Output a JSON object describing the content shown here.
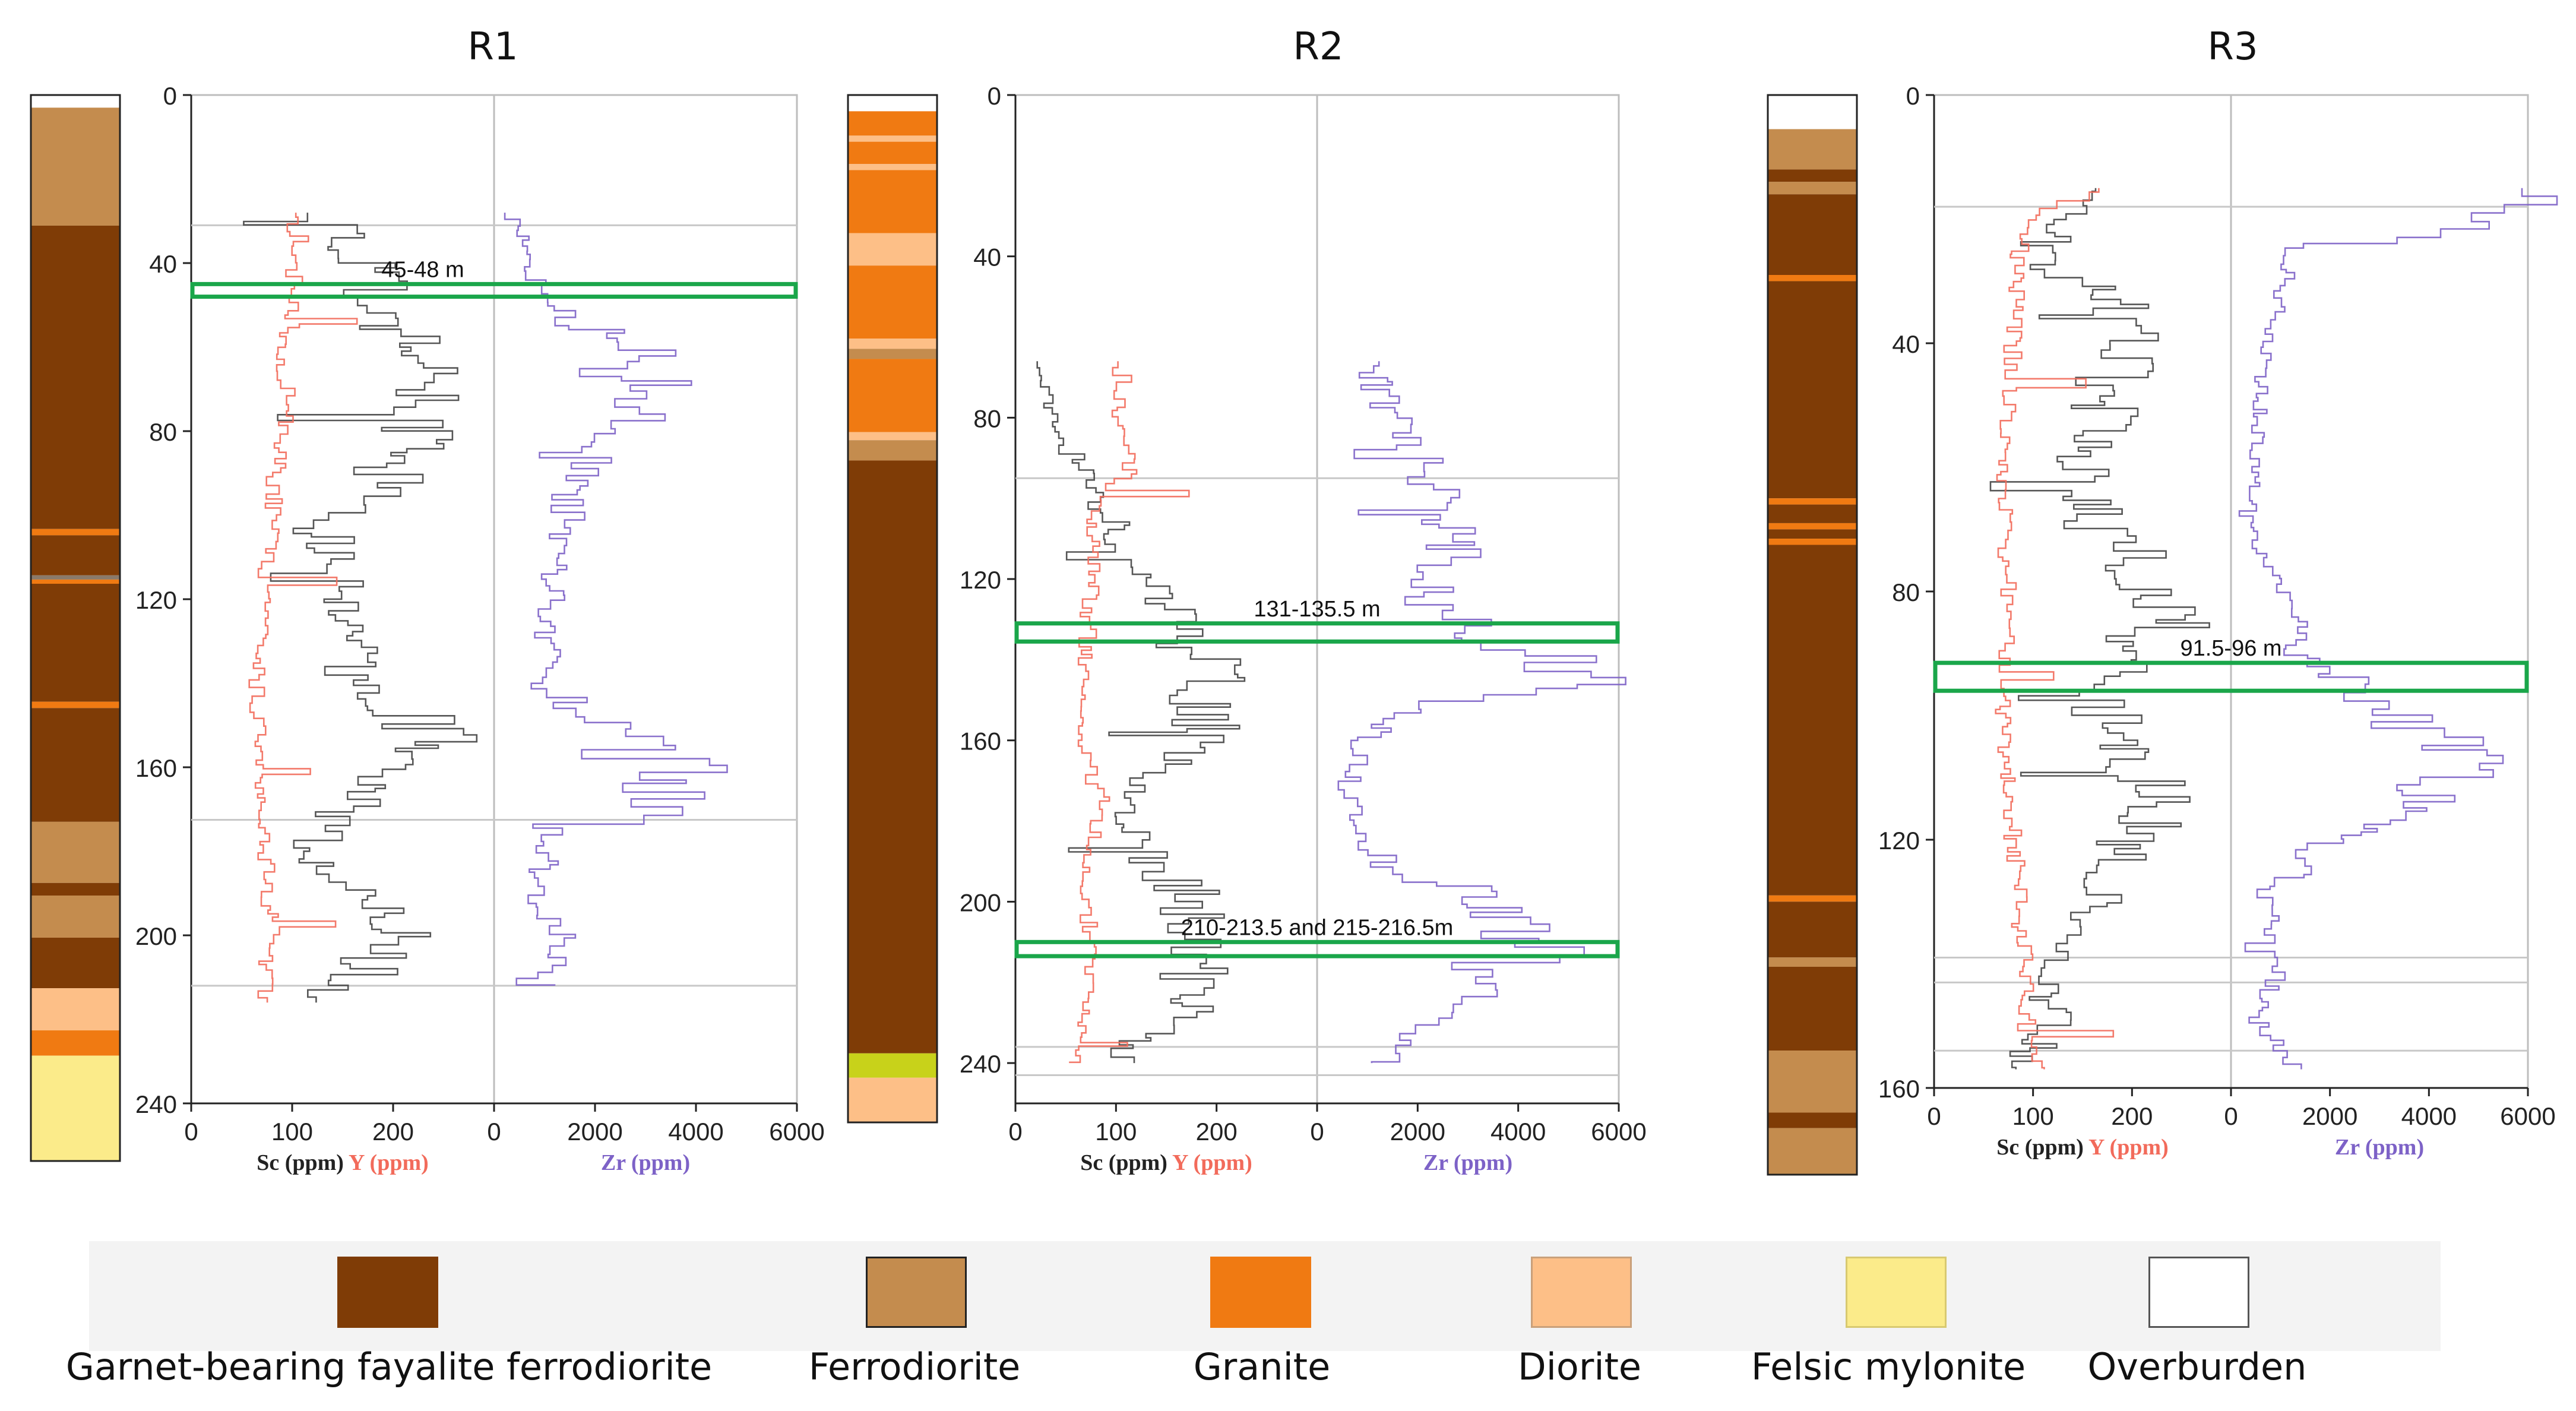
{
  "figure": {
    "legend": [
      {
        "key": "gbff",
        "label": "Garnet-bearing fayalite ferrodiorite",
        "color": "#7f3c06",
        "border": "#7f3c06"
      },
      {
        "key": "fd",
        "label": "Ferrodiorite",
        "color": "#c48c4e",
        "border": "#222222"
      },
      {
        "key": "gr",
        "label": "Granite",
        "color": "#f07a12",
        "border": "#f07a12"
      },
      {
        "key": "di",
        "label": "Diorite",
        "color": "#fdbf87",
        "border": "#c9a07a"
      },
      {
        "key": "fm",
        "label": "Felsic mylonite",
        "color": "#fbeb8a",
        "border": "#d8c970"
      },
      {
        "key": "ob",
        "label": "Overburden",
        "color": "#ffffff",
        "border": "#555555"
      }
    ],
    "extra_colors": {
      "lime": "#c8d21a",
      "grey": "#8a7a6a"
    }
  },
  "chart_data": [
    {
      "type": "line",
      "title": "R1",
      "ylabel": "",
      "ylim": [
        0,
        240
      ],
      "yticks": [
        "0",
        "40",
        "80",
        "120",
        "160",
        "200",
        "240"
      ],
      "xlabel_left": [
        {
          "text": "Sc (ppm)",
          "color": "#222222"
        },
        {
          "text": "Y (ppm)",
          "color": "#f26b5b"
        }
      ],
      "xlabel_right": [
        {
          "text": "Zr (ppm)",
          "color": "#7d62c7"
        }
      ],
      "left_xlim": [
        0,
        300
      ],
      "left_xticks": [
        "0",
        "100",
        "200"
      ],
      "right_xlim": [
        0,
        6000
      ],
      "right_xticks": [
        "0",
        "2000",
        "4000",
        "6000"
      ],
      "ref_lines": [
        31,
        172.5,
        212
      ],
      "highlights": [
        {
          "from": 45,
          "to": 48,
          "label": "45-48 m"
        }
      ],
      "series": [
        {
          "name": "Sc",
          "color": "#444444",
          "profile": [
            [
              28,
              140
            ],
            [
              40,
              170
            ],
            [
              55,
              200
            ],
            [
              65,
              225
            ],
            [
              75,
              240
            ],
            [
              85,
              220
            ],
            [
              95,
              175
            ],
            [
              100,
              120
            ],
            [
              110,
              150
            ],
            [
              125,
              140
            ],
            [
              140,
              180
            ],
            [
              150,
              240
            ],
            [
              160,
              220
            ],
            [
              170,
              150
            ],
            [
              180,
              120
            ],
            [
              190,
              160
            ],
            [
              200,
              200
            ],
            [
              210,
              160
            ],
            [
              216,
              130
            ]
          ]
        },
        {
          "name": "Y",
          "color": "#f26b5b",
          "profile": [
            [
              28,
              110
            ],
            [
              40,
              100
            ],
            [
              60,
              95
            ],
            [
              80,
              90
            ],
            [
              100,
              80
            ],
            [
              120,
              70
            ],
            [
              140,
              65
            ],
            [
              160,
              70
            ],
            [
              180,
              75
            ],
            [
              200,
              80
            ],
            [
              216,
              70
            ]
          ]
        },
        {
          "name": "Zr",
          "color": "#7d62c7",
          "profile": [
            [
              28,
              500
            ],
            [
              40,
              600
            ],
            [
              50,
              1200
            ],
            [
              60,
              2800
            ],
            [
              70,
              3200
            ],
            [
              80,
              2600
            ],
            [
              90,
              1700
            ],
            [
              100,
              1400
            ],
            [
              120,
              1200
            ],
            [
              140,
              1000
            ],
            [
              150,
              2300
            ],
            [
              160,
              3800
            ],
            [
              170,
              3000
            ],
            [
              175,
              1200
            ],
            [
              190,
              800
            ],
            [
              200,
              1300
            ],
            [
              212,
              1000
            ]
          ]
        }
      ],
      "column": [
        [
          0,
          3,
          "ob"
        ],
        [
          3,
          31,
          "fd"
        ],
        [
          31,
          103,
          "gbff"
        ],
        [
          103,
          104.5,
          "gr"
        ],
        [
          104.5,
          114,
          "gbff"
        ],
        [
          114,
          115,
          "grey"
        ],
        [
          115,
          116,
          "gr"
        ],
        [
          116,
          144,
          "gbff"
        ],
        [
          144,
          145.5,
          "gr"
        ],
        [
          145.5,
          172.5,
          "gbff"
        ],
        [
          172.5,
          187,
          "fd"
        ],
        [
          187,
          190,
          "gbff"
        ],
        [
          190,
          200,
          "fd"
        ],
        [
          200,
          212,
          "gbff"
        ],
        [
          212,
          222,
          "di"
        ],
        [
          222,
          228,
          "gr"
        ],
        [
          228,
          253,
          "fm"
        ]
      ]
    },
    {
      "type": "line",
      "title": "R2",
      "ylabel": "",
      "ylim": [
        0,
        250
      ],
      "yticks": [
        "0",
        "40",
        "80",
        "120",
        "160",
        "200",
        "240"
      ],
      "xlabel_left": [
        {
          "text": "Sc (ppm)",
          "color": "#222222"
        },
        {
          "text": "Y (ppm)",
          "color": "#f26b5b"
        }
      ],
      "xlabel_right": [
        {
          "text": "Zr (ppm)",
          "color": "#7d62c7"
        }
      ],
      "left_xlim": [
        0,
        300
      ],
      "left_xticks": [
        "0",
        "100",
        "200"
      ],
      "right_xlim": [
        0,
        6000
      ],
      "right_xticks": [
        "0",
        "2000",
        "4000",
        "6000"
      ],
      "ref_lines": [
        95,
        236,
        243
      ],
      "highlights": [
        {
          "from": 131,
          "to": 135.5,
          "label": "131-135.5 m"
        },
        {
          "from": 210,
          "to": 213.5,
          "label": "210-213.5 and 215-216.5m"
        }
      ],
      "series": [
        {
          "name": "Sc",
          "color": "#444444",
          "profile": [
            [
              66,
              20
            ],
            [
              80,
              40
            ],
            [
              95,
              70
            ],
            [
              110,
              110
            ],
            [
              125,
              150
            ],
            [
              135,
              170
            ],
            [
              145,
              200
            ],
            [
              155,
              190
            ],
            [
              165,
              150
            ],
            [
              175,
              100
            ],
            [
              190,
              140
            ],
            [
              200,
              180
            ],
            [
              210,
              200
            ],
            [
              220,
              180
            ],
            [
              230,
              150
            ],
            [
              240,
              90
            ]
          ]
        },
        {
          "name": "Y",
          "color": "#f26b5b",
          "profile": [
            [
              66,
              110
            ],
            [
              80,
              100
            ],
            [
              90,
              120
            ],
            [
              100,
              80
            ],
            [
              120,
              75
            ],
            [
              140,
              70
            ],
            [
              160,
              65
            ],
            [
              175,
              90
            ],
            [
              190,
              70
            ],
            [
              210,
              75
            ],
            [
              225,
              70
            ],
            [
              240,
              60
            ]
          ]
        },
        {
          "name": "Zr",
          "color": "#7d62c7",
          "profile": [
            [
              66,
              1000
            ],
            [
              80,
              1500
            ],
            [
              95,
              2200
            ],
            [
              110,
              2700
            ],
            [
              125,
              2000
            ],
            [
              135,
              4000
            ],
            [
              145,
              5500
            ],
            [
              150,
              2200
            ],
            [
              160,
              800
            ],
            [
              180,
              700
            ],
            [
              190,
              1400
            ],
            [
              200,
              3800
            ],
            [
              210,
              4500
            ],
            [
              215,
              3500
            ],
            [
              230,
              2000
            ],
            [
              240,
              1200
            ]
          ]
        }
      ],
      "column": [
        [
          0,
          4,
          "ob"
        ],
        [
          4,
          10,
          "gr"
        ],
        [
          10,
          11.5,
          "di"
        ],
        [
          11.5,
          17,
          "gr"
        ],
        [
          17,
          18.5,
          "di"
        ],
        [
          18.5,
          34,
          "gr"
        ],
        [
          34,
          42,
          "di"
        ],
        [
          42,
          60,
          "gr"
        ],
        [
          60,
          62.5,
          "di"
        ],
        [
          62.5,
          65,
          "fd"
        ],
        [
          65,
          83,
          "gr"
        ],
        [
          83,
          85,
          "di"
        ],
        [
          85,
          90,
          "fd"
        ],
        [
          90,
          236,
          "gbff"
        ],
        [
          236,
          242,
          "lime"
        ],
        [
          242,
          253,
          "di"
        ]
      ]
    },
    {
      "type": "line",
      "title": "R3",
      "ylabel": "",
      "ylim": [
        0,
        160
      ],
      "yticks": [
        "0",
        "40",
        "80",
        "120",
        "160"
      ],
      "xlabel_left": [
        {
          "text": "Sc (ppm)",
          "color": "#222222"
        },
        {
          "text": "Y (ppm)",
          "color": "#f26b5b"
        }
      ],
      "xlabel_right": [
        {
          "text": "Zr (ppm)",
          "color": "#7d62c7"
        }
      ],
      "left_xlim": [
        0,
        300
      ],
      "left_xticks": [
        "0",
        "100",
        "200"
      ],
      "right_xlim": [
        0,
        6000
      ],
      "right_xticks": [
        "0",
        "2000",
        "4000",
        "6000"
      ],
      "ref_lines": [
        18,
        139,
        143,
        154
      ],
      "highlights": [
        {
          "from": 91.5,
          "to": 96,
          "label": "91.5-96 m"
        }
      ],
      "series": [
        {
          "name": "Sc",
          "color": "#444444",
          "profile": [
            [
              15,
              170
            ],
            [
              25,
              100
            ],
            [
              35,
              200
            ],
            [
              45,
              180
            ],
            [
              55,
              160
            ],
            [
              65,
              150
            ],
            [
              75,
              200
            ],
            [
              85,
              230
            ],
            [
              95,
              150
            ],
            [
              105,
              200
            ],
            [
              115,
              220
            ],
            [
              125,
              180
            ],
            [
              132,
              150
            ],
            [
              140,
              100
            ],
            [
              150,
              130
            ],
            [
              157,
              70
            ]
          ]
        },
        {
          "name": "Y",
          "color": "#f26b5b",
          "profile": [
            [
              15,
              170
            ],
            [
              20,
              90
            ],
            [
              40,
              80
            ],
            [
              60,
              70
            ],
            [
              80,
              75
            ],
            [
              100,
              70
            ],
            [
              120,
              80
            ],
            [
              140,
              90
            ],
            [
              157,
              100
            ]
          ]
        },
        {
          "name": "Zr",
          "color": "#7d62c7",
          "profile": [
            [
              15,
              5200
            ],
            [
              18,
              6200
            ],
            [
              25,
              1200
            ],
            [
              40,
              700
            ],
            [
              60,
              500
            ],
            [
              70,
              400
            ],
            [
              80,
              1000
            ],
            [
              90,
              1500
            ],
            [
              100,
              3500
            ],
            [
              110,
              5000
            ],
            [
              120,
              1800
            ],
            [
              130,
              800
            ],
            [
              140,
              900
            ],
            [
              150,
              600
            ],
            [
              157,
              1400
            ]
          ]
        }
      ],
      "column": [
        [
          0,
          5.5,
          "ob"
        ],
        [
          5.5,
          12,
          "fd"
        ],
        [
          12,
          14,
          "gbff"
        ],
        [
          14,
          16,
          "fd"
        ],
        [
          16,
          29,
          "gbff"
        ],
        [
          29,
          30,
          "gr"
        ],
        [
          30,
          65,
          "gbff"
        ],
        [
          65,
          66,
          "gr"
        ],
        [
          66,
          69,
          "gbff"
        ],
        [
          69,
          70,
          "gr"
        ],
        [
          70,
          71.5,
          "gbff"
        ],
        [
          71.5,
          72.5,
          "gr"
        ],
        [
          72.5,
          129,
          "gbff"
        ],
        [
          129,
          130,
          "gr"
        ],
        [
          130,
          139,
          "gbff"
        ],
        [
          139,
          140.5,
          "fd"
        ],
        [
          140.5,
          154,
          "gbff"
        ],
        [
          154,
          164,
          "fd"
        ],
        [
          164,
          166.5,
          "gbff"
        ],
        [
          166.5,
          174,
          "fd"
        ]
      ]
    }
  ]
}
